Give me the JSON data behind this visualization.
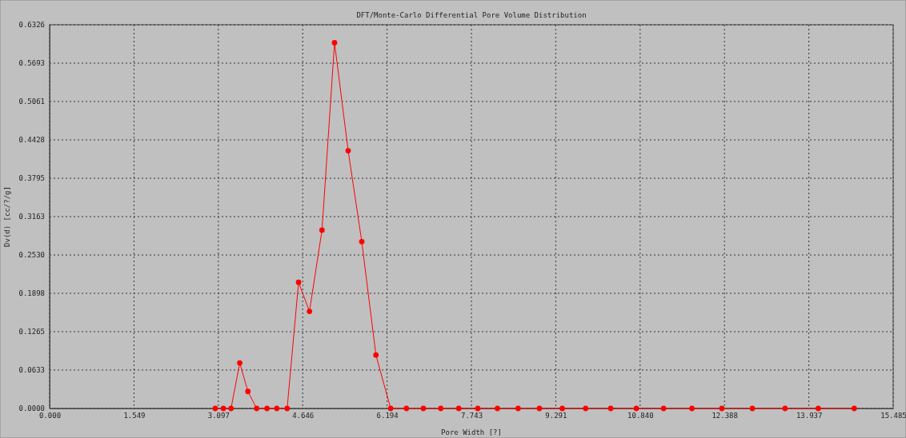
{
  "chart_data": {
    "type": "line",
    "title": "DFT/Monte-Carlo Differential Pore Volume Distribution",
    "xlabel": "Pore Width [?]",
    "ylabel": "Dv(d) [cc/?/g]",
    "x": [
      3.04,
      3.19,
      3.33,
      3.49,
      3.64,
      3.8,
      3.99,
      4.17,
      4.36,
      4.57,
      4.77,
      5.0,
      5.23,
      5.48,
      5.73,
      5.99,
      6.26,
      6.55,
      6.86,
      7.18,
      7.51,
      7.86,
      8.22,
      8.6,
      8.99,
      9.41,
      9.84,
      10.3,
      10.77,
      11.27,
      11.79,
      12.34,
      12.9,
      13.5,
      14.11,
      14.77
    ],
    "series": [
      {
        "color": "#ff0000",
        "values": [
          0,
          0,
          0,
          0.075,
          0.028,
          0,
          0,
          0,
          0,
          0.208,
          0.16,
          0.294,
          0.603,
          0.425,
          0.275,
          0.088,
          0,
          0,
          0,
          0,
          0,
          0,
          0,
          0,
          0,
          0,
          0,
          0,
          0,
          0,
          0,
          0,
          0,
          0,
          0,
          0
        ]
      }
    ],
    "xlim": [
      0,
      15.485
    ],
    "xticks": [
      {
        "value": 0,
        "label": "0.000"
      },
      {
        "value": 1.549,
        "label": "1.549"
      },
      {
        "value": 3.097,
        "label": "3.097"
      },
      {
        "value": 4.646,
        "label": "4.646"
      },
      {
        "value": 6.194,
        "label": "6.194"
      },
      {
        "value": 7.743,
        "label": "7.743"
      },
      {
        "value": 9.291,
        "label": "9.291"
      },
      {
        "value": 10.84,
        "label": "10.840"
      },
      {
        "value": 12.388,
        "label": "12.388"
      },
      {
        "value": 13.937,
        "label": "13.937"
      },
      {
        "value": 15.485,
        "label": "15.485"
      }
    ],
    "ylim": [
      0,
      0.6326
    ],
    "yticks": [
      {
        "value": 0,
        "label": "0.0000"
      },
      {
        "value": 0.0633,
        "label": "0.0633"
      },
      {
        "value": 0.1265,
        "label": "0.1265"
      },
      {
        "value": 0.1898,
        "label": "0.1898"
      },
      {
        "value": 0.253,
        "label": "0.2530"
      },
      {
        "value": 0.3163,
        "label": "0.3163"
      },
      {
        "value": 0.3795,
        "label": "0.3795"
      },
      {
        "value": 0.4428,
        "label": "0.4428"
      },
      {
        "value": 0.5061,
        "label": "0.5061"
      },
      {
        "value": 0.5693,
        "label": "0.5693"
      },
      {
        "value": 0.6326,
        "label": "0.6326"
      }
    ],
    "grid": true,
    "marker": "circle",
    "line_style": "solid"
  }
}
